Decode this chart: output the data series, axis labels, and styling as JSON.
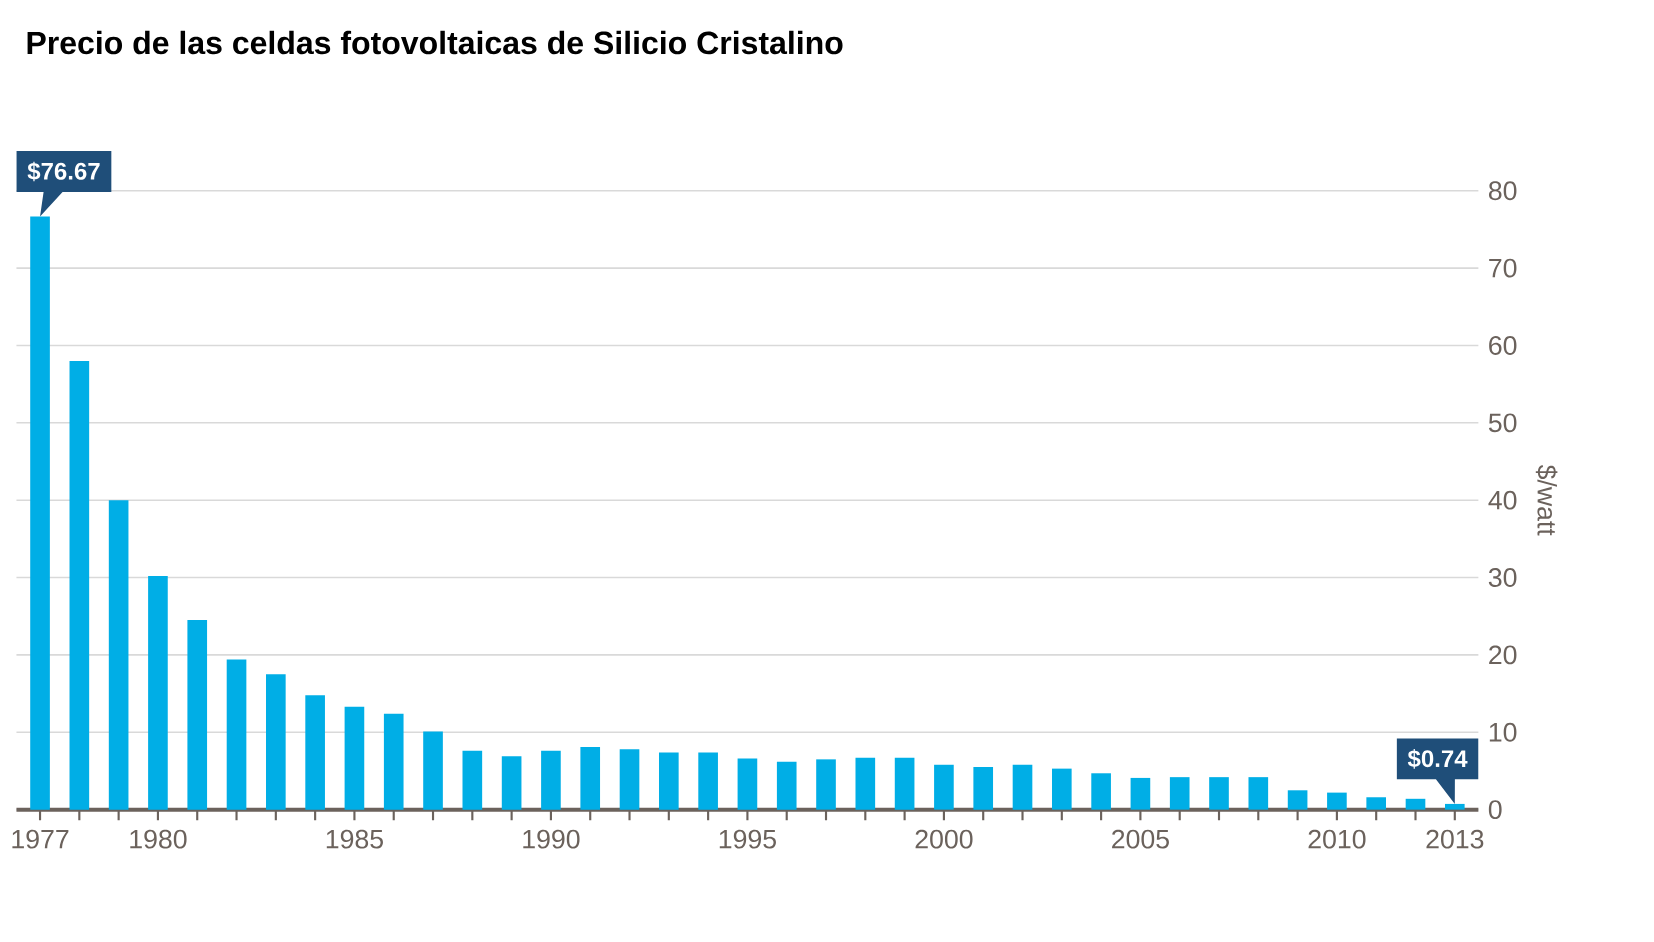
{
  "chart_data": {
    "type": "bar",
    "title": "Precio de las celdas fotovoltaicas de Silicio Cristalino",
    "ylabel": "$/watt",
    "categories": [
      "1977",
      null,
      null,
      "1980",
      null,
      null,
      null,
      null,
      "1985",
      null,
      null,
      null,
      null,
      "1990",
      null,
      null,
      null,
      null,
      "1995",
      null,
      null,
      null,
      null,
      "2000",
      null,
      null,
      null,
      null,
      "2005",
      null,
      null,
      null,
      null,
      "2010",
      null,
      null,
      "2013"
    ],
    "values": [
      76.67,
      58.0,
      40.0,
      30.2,
      24.5,
      19.4,
      17.5,
      14.8,
      13.3,
      12.4,
      10.1,
      7.6,
      6.9,
      7.6,
      8.1,
      7.8,
      7.4,
      7.4,
      6.6,
      6.2,
      6.5,
      6.7,
      6.7,
      5.8,
      5.5,
      5.8,
      5.3,
      4.7,
      4.1,
      4.2,
      4.2,
      4.2,
      2.5,
      2.2,
      1.6,
      1.4,
      0.74
    ],
    "value_labels": [
      "$76.67",
      null,
      null,
      null,
      null,
      null,
      null,
      null,
      null,
      null,
      null,
      null,
      null,
      null,
      null,
      null,
      null,
      null,
      null,
      null,
      null,
      null,
      null,
      null,
      null,
      null,
      null,
      null,
      null,
      null,
      null,
      null,
      null,
      null,
      null,
      null,
      "$0.74"
    ],
    "color": "#00aee6",
    "ylim": [
      0,
      80
    ],
    "yticks": [
      0,
      10,
      20,
      30,
      40,
      50,
      60,
      70,
      80
    ],
    "grid": "y"
  }
}
